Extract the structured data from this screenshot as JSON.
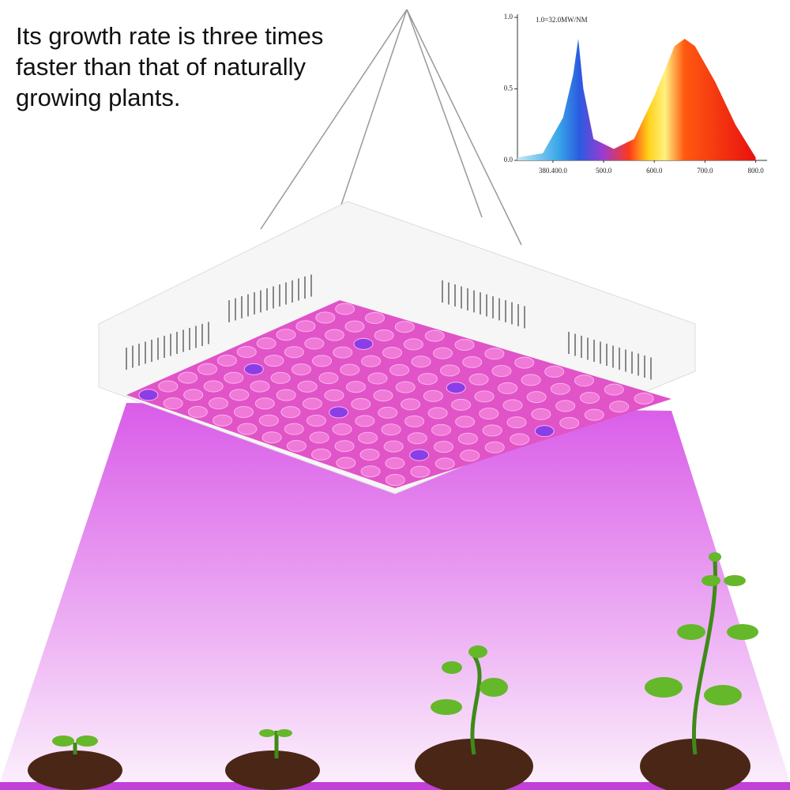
{
  "headline": {
    "lines": [
      "Its growth rate is three times",
      "faster than that of naturally",
      "growing plants."
    ]
  },
  "chart_data": {
    "type": "area",
    "annotation": "1.0=32.0MW/NM",
    "x": [
      330,
      380,
      420,
      440,
      450,
      460,
      480,
      520,
      560,
      600,
      640,
      660,
      680,
      720,
      760,
      800
    ],
    "values": [
      0.02,
      0.05,
      0.3,
      0.6,
      0.85,
      0.5,
      0.15,
      0.08,
      0.15,
      0.45,
      0.8,
      0.85,
      0.8,
      0.55,
      0.25,
      0.02
    ],
    "xlim": [
      330,
      810
    ],
    "xticks": [
      {
        "value": 400,
        "label": "380.400.0"
      },
      {
        "value": 500,
        "label": "500.0"
      },
      {
        "value": 600,
        "label": "600.0"
      },
      {
        "value": 700,
        "label": "700.0"
      },
      {
        "value": 800,
        "label": "800.0"
      }
    ],
    "ylim": [
      0,
      1
    ],
    "yticks": [
      {
        "value": 0,
        "label": "0.0"
      },
      {
        "value": 0.5,
        "label": "0.5"
      },
      {
        "value": 1,
        "label": "1.0"
      }
    ]
  }
}
